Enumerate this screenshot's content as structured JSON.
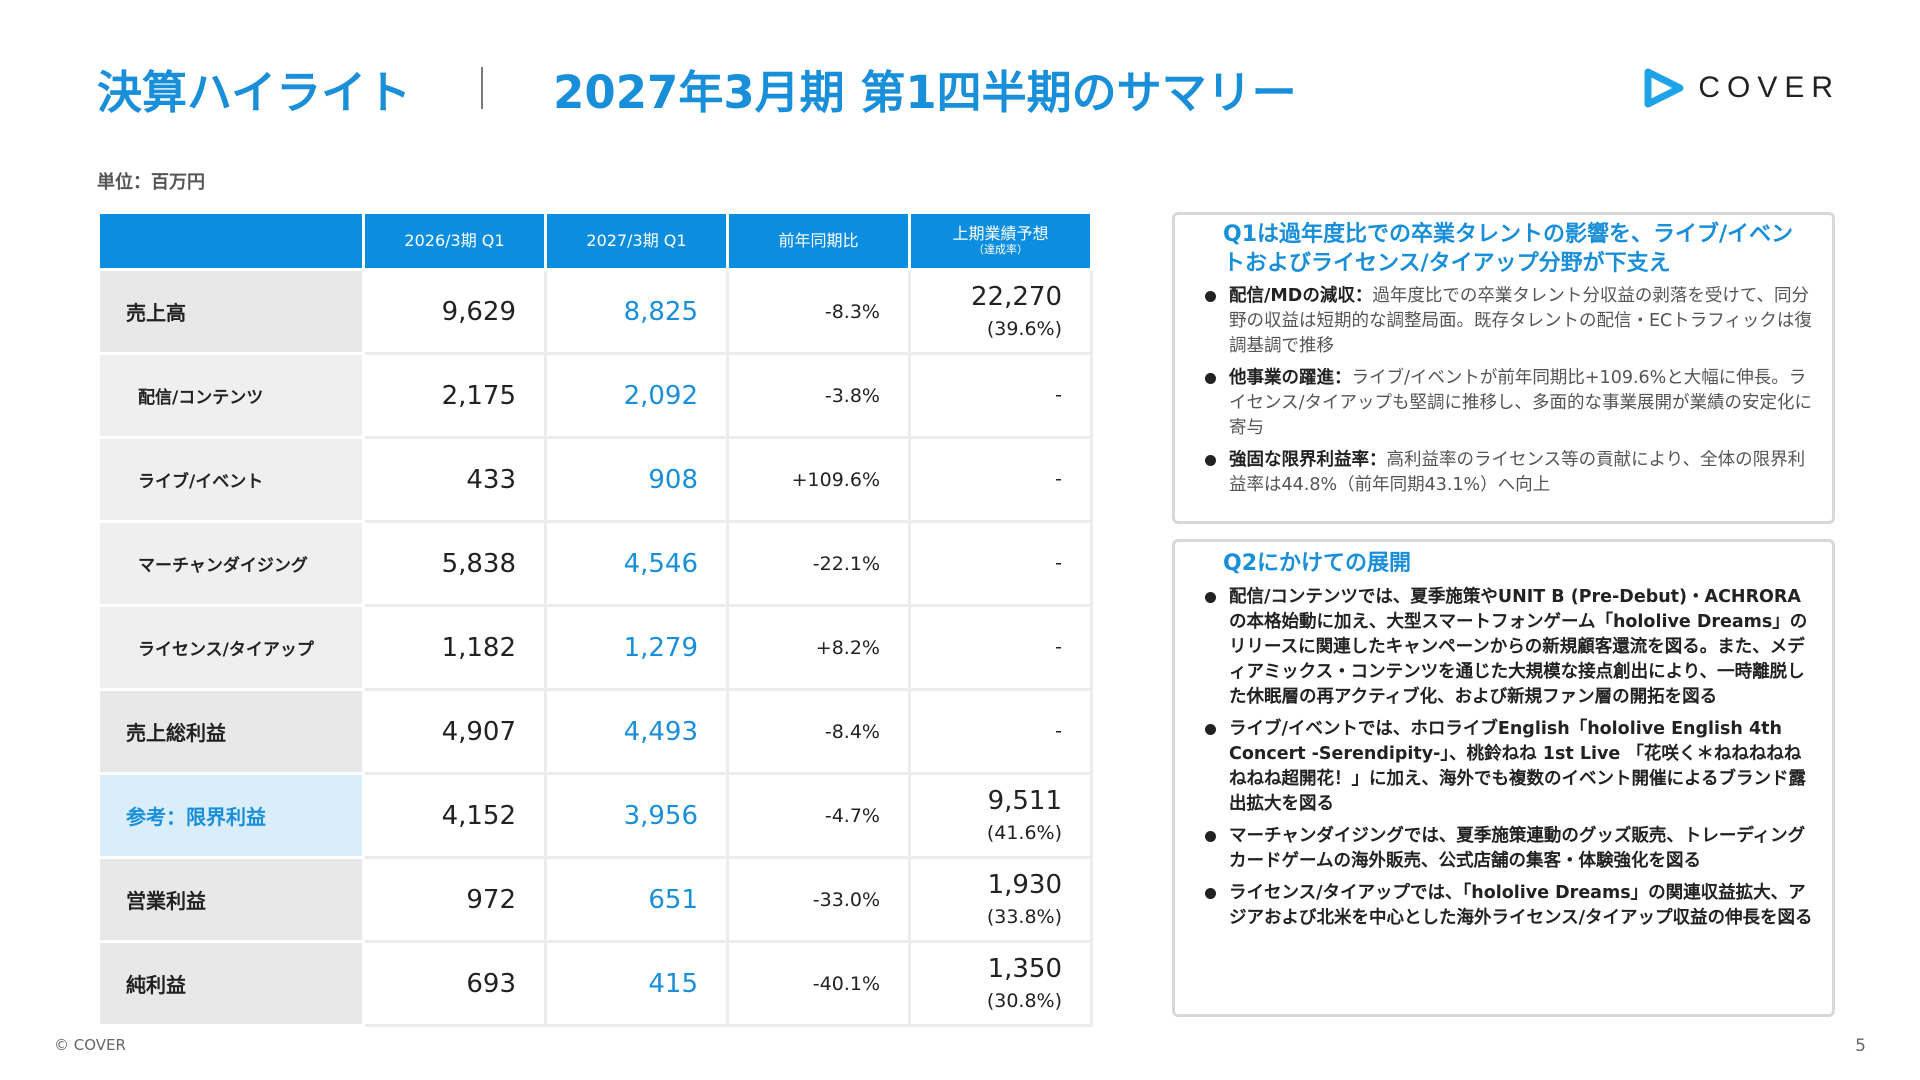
{
  "header": {
    "title": "決算ハイライト",
    "subtitle": "2027年3月期 第1四半期のサマリー",
    "logo_text": "COVER",
    "logo_icon": "cover-play-icon",
    "accent_color": "#1a8fd9"
  },
  "unit_label": "単位：百万円",
  "table": {
    "columns": [
      "2026/3期 Q1",
      "2027/3期 Q1",
      "前年同期比",
      "上期業績予想",
      "（達成率）"
    ],
    "rows": [
      {
        "label": "売上高",
        "prev": "9,629",
        "curr": "8,825",
        "yoy": "-8.3%",
        "forecast": "22,270",
        "rate": "(39.6%)"
      },
      {
        "label": "配信/コンテンツ",
        "prev": "2,175",
        "curr": "2,092",
        "yoy": "-3.8%",
        "forecast": "-"
      },
      {
        "label": "ライブ/イベント",
        "prev": "433",
        "curr": "908",
        "yoy": "+109.6%",
        "forecast": "-"
      },
      {
        "label": "マーチャンダイジング",
        "prev": "5,838",
        "curr": "4,546",
        "yoy": "-22.1%",
        "forecast": "-"
      },
      {
        "label": "ライセンス/タイアップ",
        "prev": "1,182",
        "curr": "1,279",
        "yoy": "+8.2%",
        "forecast": "-"
      },
      {
        "label": "売上総利益",
        "prev": "4,907",
        "curr": "4,493",
        "yoy": "-8.4%",
        "forecast": "-"
      },
      {
        "label": "参考：限界利益",
        "prev": "4,152",
        "curr": "3,956",
        "yoy": "-4.7%",
        "forecast": "9,511",
        "rate": "(41.6%)"
      },
      {
        "label": "営業利益",
        "prev": "972",
        "curr": "651",
        "yoy": "-33.0%",
        "forecast": "1,930",
        "rate": "(33.8%)"
      },
      {
        "label": "純利益",
        "prev": "693",
        "curr": "415",
        "yoy": "-40.1%",
        "forecast": "1,350",
        "rate": "(30.8%)"
      }
    ]
  },
  "summary_box": {
    "heading": "Q1は過年度比での卒業タレントの影響を、ライブ/イベントおよびライセンス/タイアップ分野が下支え",
    "bullets": [
      {
        "lead": "配信/MDの減収：",
        "text": "過年度比での卒業タレント分収益の剥落を受けて、同分野の収益は短期的な調整局面。既存タレントの配信・ECトラフィックは復調基調で推移"
      },
      {
        "lead": "他事業の躍進：",
        "text": "ライブ/イベントが前年同期比+109.6%と大幅に伸長。ライセンス/タイアップも堅調に推移し、多面的な事業展開が業績の安定化に寄与"
      },
      {
        "lead": "強固な限界利益率：",
        "text": "高利益率のライセンス等の貢献により、全体の限界利益率は44.8%（前年同期43.1%）へ向上"
      }
    ]
  },
  "outlook_box": {
    "heading": "Q2にかけての展開",
    "bullets": [
      "配信/コンテンツでは、夏季施策やUNIT B (Pre-Debut)・ACHRORAの本格始動に加え、大型スマートフォンゲーム「hololive Dreams」のリリースに関連したキャンペーンからの新規顧客還流を図る。また、メディアミックス・コンテンツを通じた大規模な接点創出により、一時離脱した休眠層の再アクティブ化、および新規ファン層の開拓を図る",
      "ライブ/イベントでは、ホロライブEnglish「hololive English 4th Concert -Serendipity-」、桃鈴ねね 1st Live 「花咲く＊ねねねねねねねね超開花！」に加え、海外でも複数のイベント開催によるブランド露出拡大を図る",
      "マーチャンダイジングでは、夏季施策連動のグッズ販売、トレーディングカードゲームの海外販売、公式店舗の集客・体験強化を図る",
      "ライセンス/タイアップでは、「hololive Dreams」の関連収益拡大、アジアおよび北米を中心とした海外ライセンス/タイアップ収益の伸長を図る"
    ]
  },
  "footer": {
    "copyright": "© COVER",
    "page_number": "5"
  }
}
